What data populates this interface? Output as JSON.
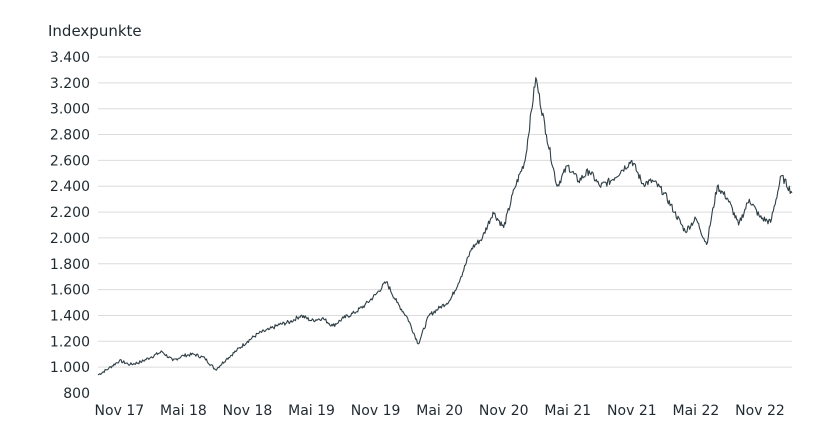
{
  "chart_data": {
    "type": "line",
    "title": "",
    "xlabel": "",
    "ylabel": "Indexpunkte",
    "ylim": [
      800,
      3400
    ],
    "yticks": [
      800,
      1000,
      1200,
      1400,
      1600,
      1800,
      2000,
      2200,
      2400,
      2600,
      2800,
      3000,
      3200,
      3400
    ],
    "ytick_labels": [
      "800",
      "1.000",
      "1.200",
      "1.400",
      "1.600",
      "1.800",
      "2.000",
      "2.200",
      "2.400",
      "2.600",
      "2.800",
      "3.000",
      "3.200",
      "3.400"
    ],
    "xticks": [
      "Nov 17",
      "Mai 18",
      "Nov 18",
      "Mai 19",
      "Nov 19",
      "Mai 20",
      "Nov 20",
      "Mai 21",
      "Nov 21",
      "Mai 22",
      "Nov 22"
    ],
    "xrange": [
      "2017-09",
      "2023-02"
    ],
    "grid": true,
    "line_color": "#2f3f45",
    "series": [
      {
        "x": [
          "2017-09",
          "2017-10",
          "2017-11",
          "2017-12",
          "2018-01",
          "2018-02",
          "2018-03",
          "2018-04",
          "2018-05",
          "2018-06",
          "2018-07",
          "2018-08",
          "2018-09",
          "2018-10",
          "2018-11",
          "2018-12",
          "2019-01",
          "2019-02",
          "2019-03",
          "2019-04",
          "2019-05",
          "2019-06",
          "2019-07",
          "2019-08",
          "2019-09",
          "2019-10",
          "2019-11",
          "2019-12",
          "2020-01",
          "2020-02",
          "2020-03",
          "2020-04",
          "2020-05",
          "2020-06",
          "2020-07",
          "2020-08",
          "2020-09",
          "2020-10",
          "2020-11",
          "2020-12",
          "2021-01",
          "2021-02",
          "2021-03",
          "2021-04",
          "2021-05",
          "2021-06",
          "2021-07",
          "2021-08",
          "2021-09",
          "2021-10",
          "2021-11",
          "2021-12",
          "2022-01",
          "2022-02",
          "2022-03",
          "2022-04",
          "2022-05",
          "2022-06",
          "2022-07",
          "2022-08",
          "2022-09",
          "2022-10",
          "2022-11",
          "2022-12",
          "2023-01",
          "2023-02"
        ],
        "y": [
          940,
          990,
          1050,
          1020,
          1040,
          1080,
          1120,
          1050,
          1090,
          1100,
          1070,
          980,
          1060,
          1130,
          1200,
          1260,
          1290,
          1330,
          1350,
          1400,
          1360,
          1380,
          1320,
          1380,
          1420,
          1480,
          1560,
          1660,
          1500,
          1380,
          1180,
          1400,
          1460,
          1520,
          1700,
          1920,
          2000,
          2200,
          2080,
          2380,
          2600,
          3240,
          2800,
          2400,
          2560,
          2440,
          2520,
          2400,
          2440,
          2520,
          2600,
          2420,
          2440,
          2350,
          2200,
          2050,
          2150,
          1950,
          2400,
          2300,
          2100,
          2300,
          2160,
          2120,
          2480,
          2350
        ]
      }
    ]
  }
}
